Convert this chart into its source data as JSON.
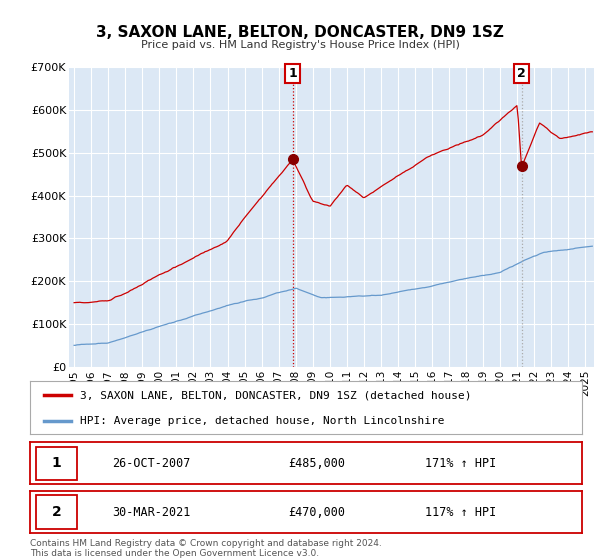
{
  "title": "3, SAXON LANE, BELTON, DONCASTER, DN9 1SZ",
  "subtitle": "Price paid vs. HM Land Registry's House Price Index (HPI)",
  "line1_label": "3, SAXON LANE, BELTON, DONCASTER, DN9 1SZ (detached house)",
  "line2_label": "HPI: Average price, detached house, North Lincolnshire",
  "line1_color": "#cc0000",
  "line2_color": "#6699cc",
  "plot_bg_color": "#dce8f5",
  "grid_color": "#ffffff",
  "marker1_date": 2007.82,
  "marker1_value": 485000,
  "marker2_date": 2021.25,
  "marker2_value": 470000,
  "marker1_date_str": "26-OCT-2007",
  "marker2_date_str": "30-MAR-2021",
  "marker1_price_str": "£485,000",
  "marker2_price_str": "£470,000",
  "marker1_hpi_str": "171% ↑ HPI",
  "marker2_hpi_str": "117% ↑ HPI",
  "ylim": [
    0,
    700000
  ],
  "xlim_start": 1994.7,
  "xlim_end": 2025.5,
  "ylabel_ticks": [
    0,
    100000,
    200000,
    300000,
    400000,
    500000,
    600000,
    700000
  ],
  "ylabel_labels": [
    "£0",
    "£100K",
    "£200K",
    "£300K",
    "£400K",
    "£500K",
    "£600K",
    "£700K"
  ],
  "xticks": [
    1995,
    1996,
    1997,
    1998,
    1999,
    2000,
    2001,
    2002,
    2003,
    2004,
    2005,
    2006,
    2007,
    2008,
    2009,
    2010,
    2011,
    2012,
    2013,
    2014,
    2015,
    2016,
    2017,
    2018,
    2019,
    2020,
    2021,
    2022,
    2023,
    2024,
    2025
  ],
  "footer": "Contains HM Land Registry data © Crown copyright and database right 2024.\nThis data is licensed under the Open Government Licence v3.0."
}
